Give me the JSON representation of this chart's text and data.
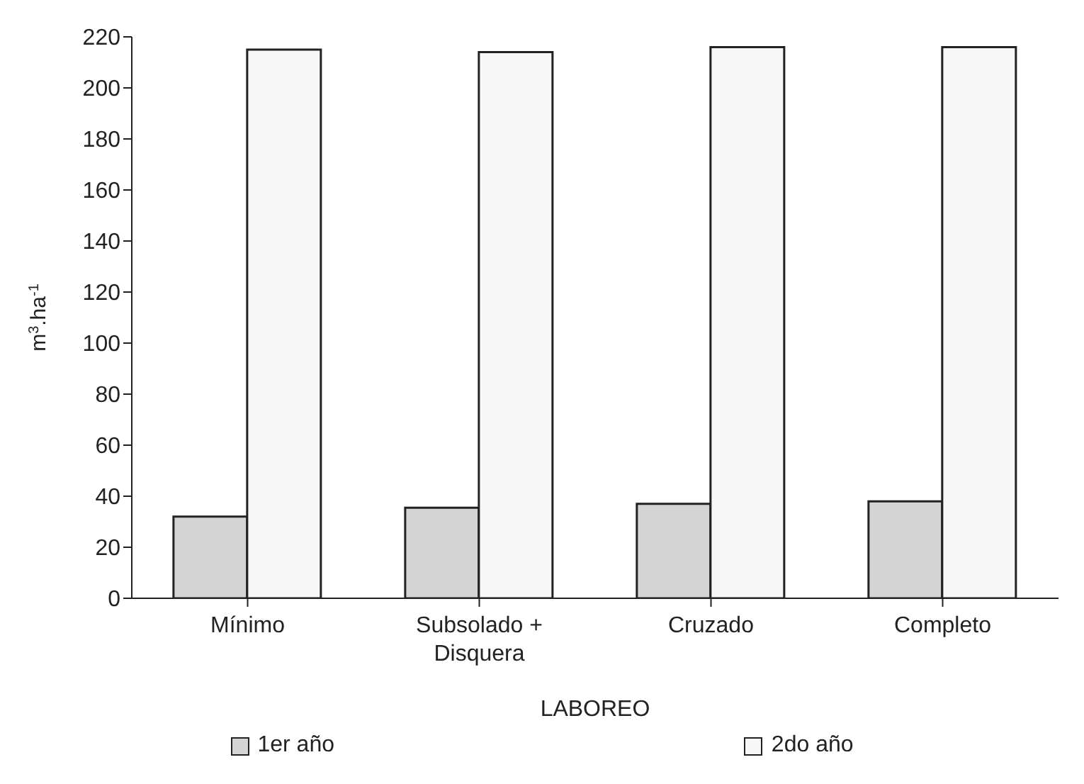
{
  "chart_data": {
    "type": "bar",
    "xlabel": "LABOREO",
    "ylabel": "m$^{3}$.ha$^{-1}$",
    "categories": [
      "Mínimo",
      "Subsolado + Disquera",
      "Cruzado",
      "Completo"
    ],
    "series": [
      {
        "name": "1er año",
        "color": "#d4d4d4",
        "values": [
          32,
          35.5,
          37,
          38
        ]
      },
      {
        "name": "2do año",
        "color": "#f7f7f7",
        "values": [
          215,
          214,
          216,
          216
        ]
      }
    ],
    "ylim": [
      0,
      220
    ],
    "yticks": [
      0,
      20,
      40,
      60,
      80,
      100,
      120,
      140,
      160,
      180,
      200,
      220
    ],
    "legend": "bottom"
  }
}
